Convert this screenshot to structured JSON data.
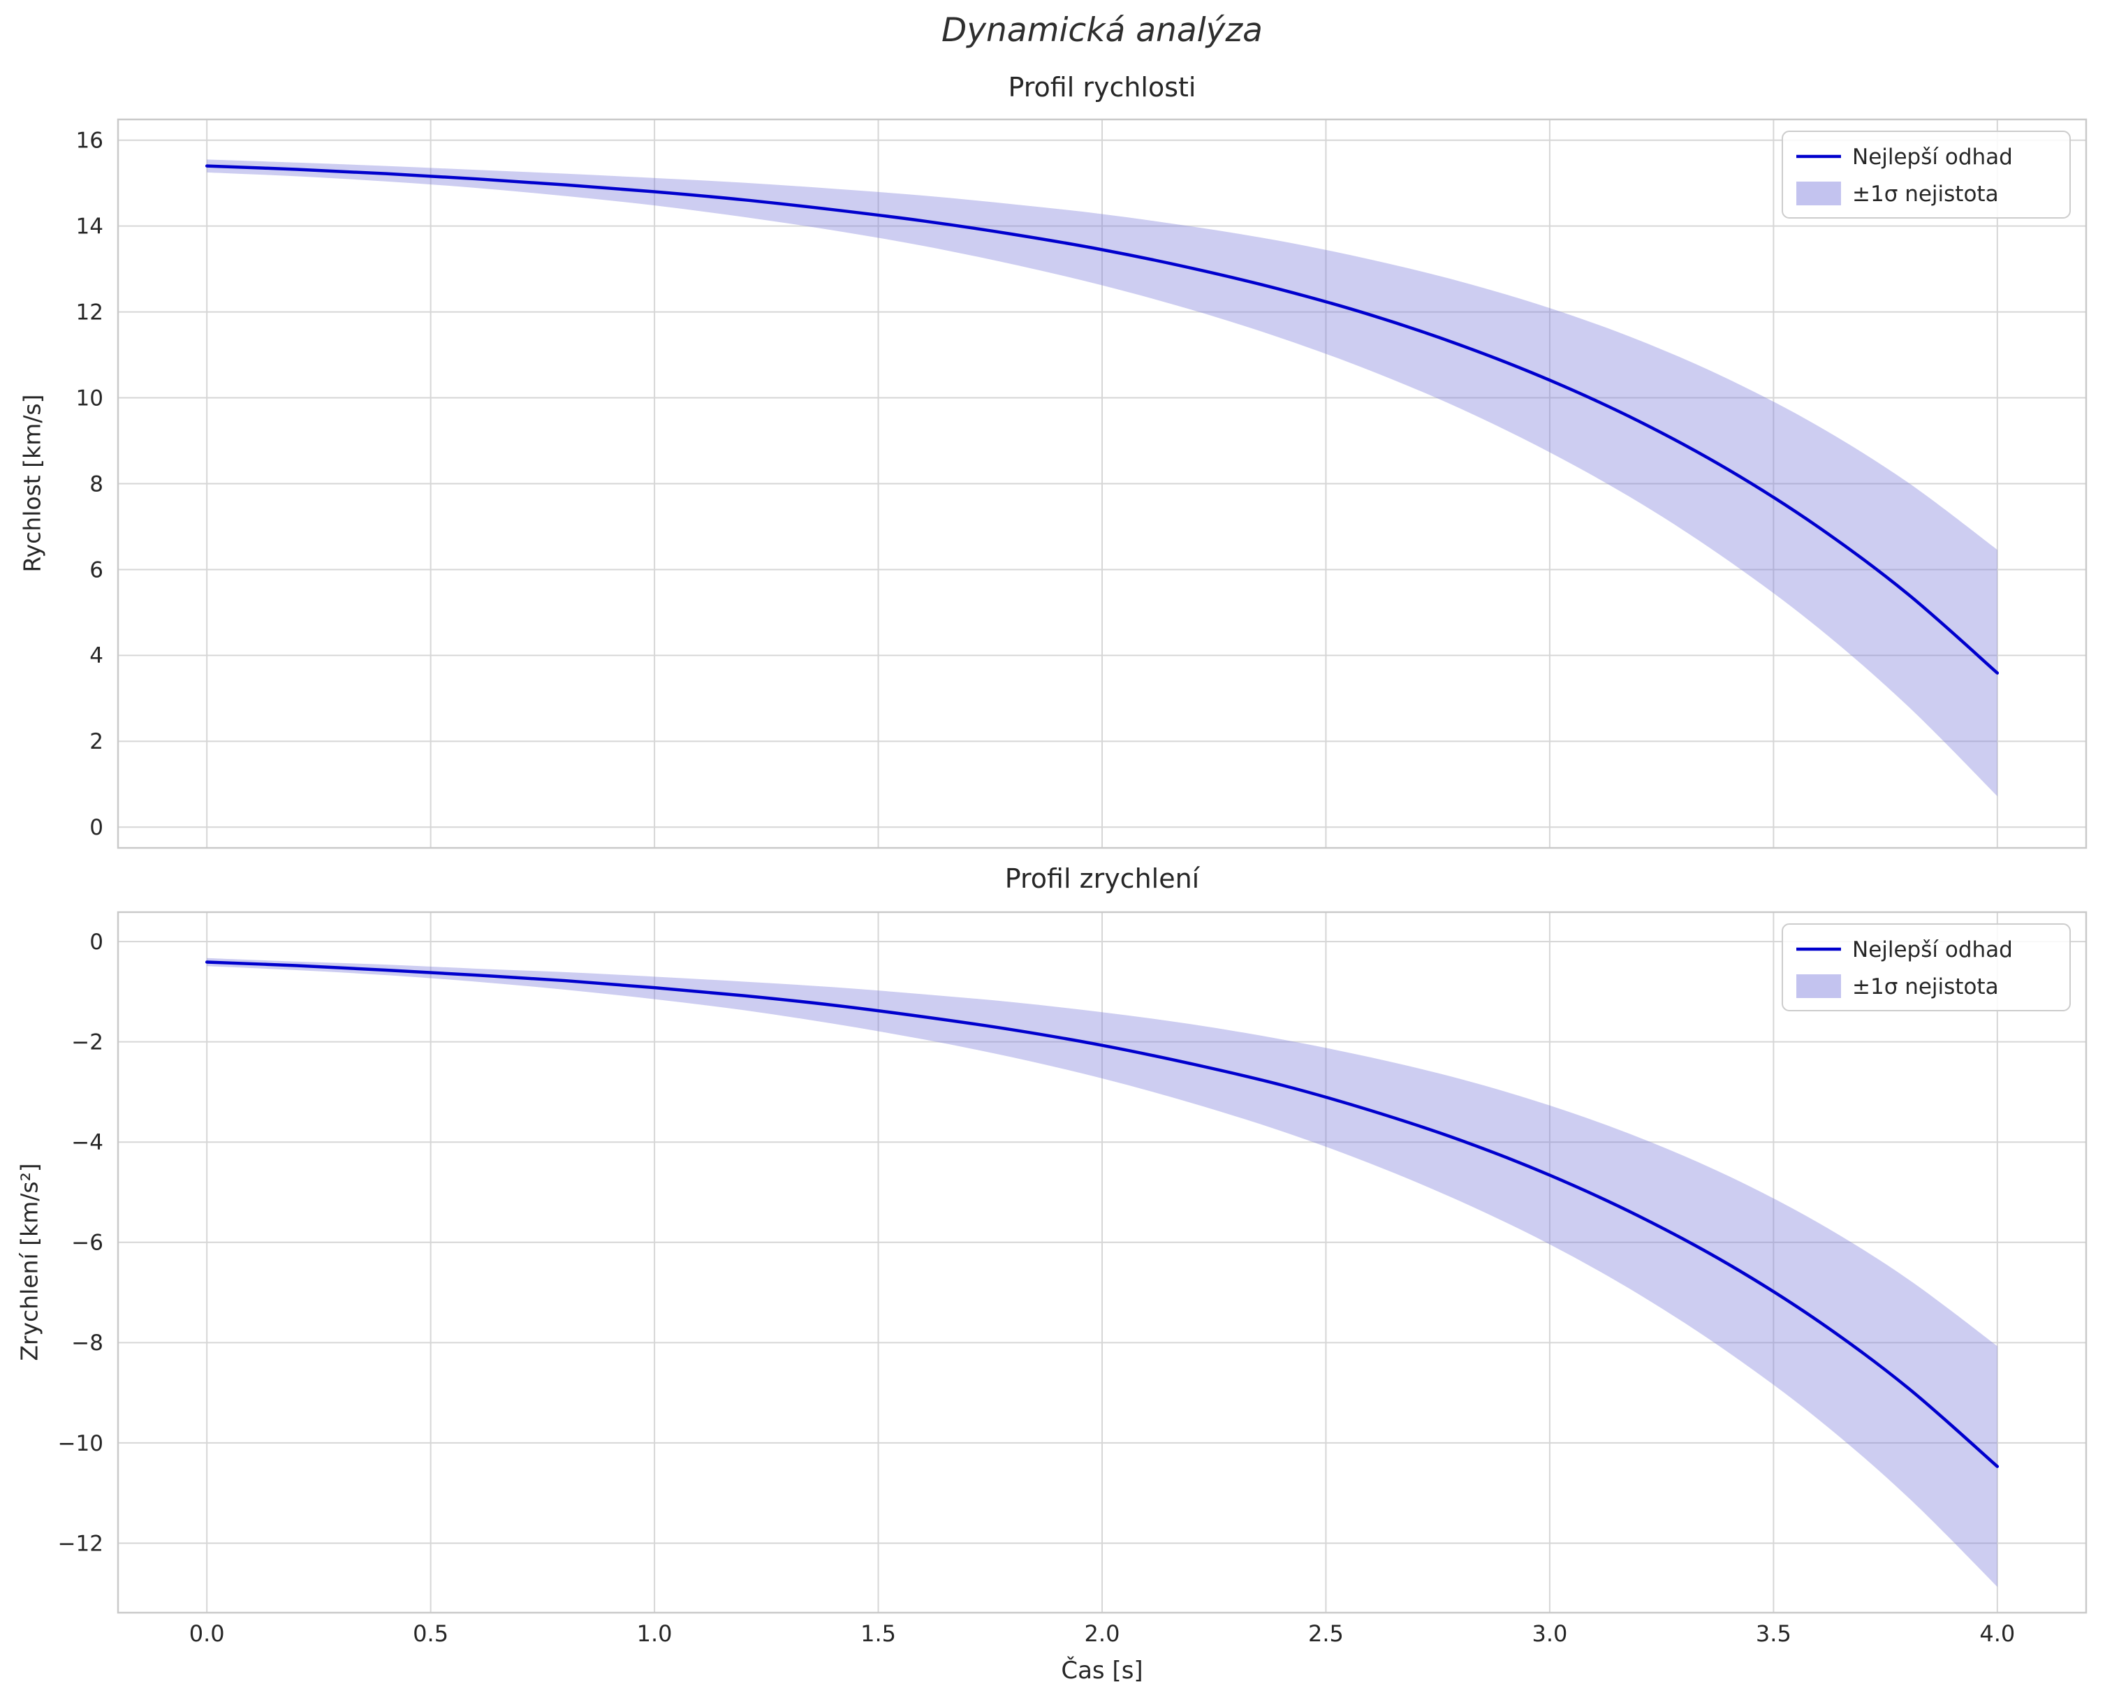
{
  "suptitle": "Dynamická analýza",
  "xlabel": "Čas [s]",
  "xtick_labels": [
    "0.0",
    "0.5",
    "1.0",
    "1.5",
    "2.0",
    "2.5",
    "3.0",
    "3.5",
    "4.0"
  ],
  "colors": {
    "line": "#0000cd",
    "band": "#7b7bdb",
    "grid": "#d6d6d6",
    "frame": "#c9c9c9",
    "text": "#262626"
  },
  "chart_data": [
    {
      "type": "line",
      "title": "Profil rychlosti",
      "ylabel": "Rychlost [km/s]",
      "legend": [
        "Nejlepší odhad",
        "±1σ nejistota"
      ],
      "legend_position": "upper right",
      "grid": true,
      "xlim": [
        -0.2,
        4.2
      ],
      "ylim": [
        -0.5,
        16.5
      ],
      "xticks": [
        0,
        0.5,
        1,
        1.5,
        2,
        2.5,
        3,
        3.5,
        4
      ],
      "yticks": [
        0,
        2,
        4,
        6,
        8,
        10,
        12,
        14,
        16
      ],
      "ytick_labels": [
        "0",
        "2",
        "4",
        "6",
        "8",
        "10",
        "12",
        "14",
        "16"
      ],
      "x": [
        0,
        0.2,
        0.4,
        0.6,
        0.8,
        1,
        1.2,
        1.4,
        1.6,
        1.8,
        2,
        2.2,
        2.4,
        2.6,
        2.8,
        3,
        3.2,
        3.4,
        3.6,
        3.8,
        4
      ],
      "best": [
        15.4,
        15.32,
        15.22,
        15.1,
        14.96,
        14.8,
        14.61,
        14.38,
        14.12,
        13.81,
        13.45,
        13.02,
        12.52,
        11.93,
        11.23,
        10.41,
        9.45,
        8.32,
        6.99,
        5.43,
        3.59
      ],
      "upper": [
        15.55,
        15.48,
        15.4,
        15.31,
        15.22,
        15.12,
        15.01,
        14.87,
        14.71,
        14.51,
        14.28,
        13.99,
        13.65,
        13.22,
        12.71,
        12.09,
        11.34,
        10.43,
        9.34,
        8.03,
        6.46
      ],
      "lower": [
        15.25,
        15.16,
        15.04,
        14.89,
        14.7,
        14.48,
        14.21,
        13.9,
        13.54,
        13.11,
        12.62,
        12.05,
        11.39,
        10.63,
        9.75,
        8.73,
        7.56,
        6.2,
        4.64,
        2.82,
        0.72
      ]
    },
    {
      "type": "line",
      "title": "Profil zrychlení",
      "ylabel": "Zrychlení [km/s²]",
      "legend": [
        "Nejlepší odhad",
        "±1σ nejistota"
      ],
      "legend_position": "upper right",
      "grid": true,
      "xlim": [
        -0.2,
        4.2
      ],
      "ylim": [
        -13.4,
        0.6
      ],
      "xticks": [
        0,
        0.5,
        1,
        1.5,
        2,
        2.5,
        3,
        3.5,
        4
      ],
      "yticks": [
        0,
        -2,
        -4,
        -6,
        -8,
        -10,
        -12
      ],
      "ytick_labels": [
        "0",
        "−2",
        "−4",
        "−6",
        "−8",
        "−10",
        "−12"
      ],
      "x": [
        0,
        0.2,
        0.4,
        0.6,
        0.8,
        1,
        1.2,
        1.4,
        1.6,
        1.8,
        2,
        2.2,
        2.4,
        2.6,
        2.8,
        3,
        3.2,
        3.4,
        3.6,
        3.8,
        4
      ],
      "best": [
        -0.41,
        -0.48,
        -0.57,
        -0.67,
        -0.78,
        -0.92,
        -1.08,
        -1.27,
        -1.5,
        -1.76,
        -2.07,
        -2.44,
        -2.86,
        -3.37,
        -3.96,
        -4.66,
        -5.48,
        -6.44,
        -7.57,
        -8.9,
        -10.47
      ],
      "upper": [
        -0.33,
        -0.4,
        -0.46,
        -0.54,
        -0.61,
        -0.7,
        -0.8,
        -0.91,
        -1.05,
        -1.21,
        -1.41,
        -1.65,
        -1.95,
        -2.31,
        -2.74,
        -3.27,
        -3.91,
        -4.68,
        -5.61,
        -6.73,
        -8.07
      ],
      "lower": [
        -0.49,
        -0.57,
        -0.67,
        -0.8,
        -0.96,
        -1.15,
        -1.37,
        -1.64,
        -1.95,
        -2.31,
        -2.73,
        -3.22,
        -3.78,
        -4.43,
        -5.18,
        -6.04,
        -7.04,
        -8.2,
        -9.53,
        -11.08,
        -12.87
      ]
    }
  ]
}
